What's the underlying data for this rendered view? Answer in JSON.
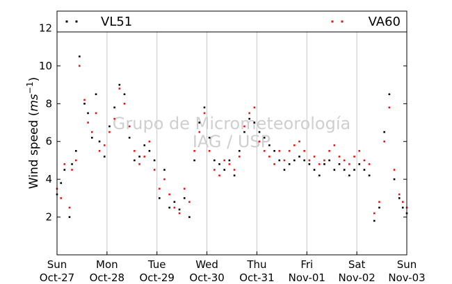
{
  "chart_data": {
    "type": "scatter",
    "title": "",
    "xlabel": "",
    "ylabel": "Wind speed (m s⁻¹)",
    "ylabel_parts": {
      "main": "Wind speed (",
      "unit_base": "ms",
      "unit_exp": "−1",
      "close": ")"
    },
    "ylim": [
      0,
      12.9
    ],
    "xlim": [
      0,
      7
    ],
    "y_ticks": [
      2,
      4,
      6,
      8,
      10,
      12
    ],
    "x_ticks": [
      {
        "x": 0,
        "day": "Sun",
        "date": "Oct-27"
      },
      {
        "x": 1,
        "day": "Mon",
        "date": "Oct-28"
      },
      {
        "x": 2,
        "day": "Tue",
        "date": "Oct-29"
      },
      {
        "x": 3,
        "day": "Wed",
        "date": "Oct-30"
      },
      {
        "x": 4,
        "day": "Thu",
        "date": "Oct-31"
      },
      {
        "x": 5,
        "day": "Fri",
        "date": "Nov-01"
      },
      {
        "x": 6,
        "day": "Sat",
        "date": "Nov-02"
      },
      {
        "x": 7,
        "day": "Sun",
        "date": "Nov-03"
      }
    ],
    "grid": "vertical",
    "legend": {
      "placement": "top"
    },
    "watermark": [
      "Grupo de Micrometeorología",
      "IAG / USP"
    ],
    "series": [
      {
        "name": "VL51",
        "color": "#000000",
        "x": [
          0.0,
          0.08,
          0.15,
          0.25,
          0.3,
          0.38,
          0.45,
          0.55,
          0.62,
          0.7,
          0.78,
          0.85,
          0.95,
          1.05,
          1.15,
          1.25,
          1.35,
          1.45,
          1.55,
          1.65,
          1.75,
          1.85,
          1.95,
          2.05,
          2.15,
          2.25,
          2.35,
          2.45,
          2.55,
          2.65,
          2.75,
          2.85,
          2.95,
          3.05,
          3.15,
          3.25,
          3.35,
          3.45,
          3.55,
          3.65,
          3.75,
          3.85,
          3.95,
          4.05,
          4.15,
          4.25,
          4.35,
          4.45,
          4.55,
          4.65,
          4.75,
          4.85,
          4.95,
          5.05,
          5.15,
          5.25,
          5.35,
          5.45,
          5.55,
          5.65,
          5.75,
          5.85,
          5.95,
          6.05,
          6.15,
          6.25,
          6.35,
          6.45,
          6.55,
          6.65,
          6.75,
          6.85,
          6.92,
          7.0
        ],
        "y": [
          3.2,
          3.8,
          4.5,
          2.0,
          4.8,
          5.5,
          10.5,
          8.0,
          7.5,
          6.2,
          8.5,
          6.0,
          5.2,
          6.8,
          7.8,
          9.0,
          8.5,
          6.2,
          5.0,
          5.2,
          5.8,
          5.5,
          5.0,
          3.0,
          4.5,
          2.5,
          2.8,
          2.4,
          3.0,
          2.0,
          5.0,
          7.0,
          7.8,
          6.2,
          5.0,
          4.8,
          4.5,
          5.0,
          4.2,
          5.5,
          6.5,
          7.2,
          7.0,
          6.5,
          6.2,
          5.8,
          5.5,
          5.0,
          4.5,
          4.8,
          5.0,
          5.2,
          5.0,
          4.8,
          4.5,
          4.2,
          4.8,
          5.0,
          4.5,
          4.8,
          4.5,
          4.2,
          4.5,
          4.8,
          4.5,
          4.2,
          1.8,
          2.5,
          6.5,
          8.5,
          4.0,
          3.0,
          2.5,
          2.2
        ]
      },
      {
        "name": "VA60",
        "color": "#ee1111",
        "x": [
          0.0,
          0.08,
          0.15,
          0.25,
          0.3,
          0.38,
          0.45,
          0.55,
          0.62,
          0.7,
          0.78,
          0.85,
          0.95,
          1.05,
          1.15,
          1.25,
          1.35,
          1.45,
          1.55,
          1.65,
          1.75,
          1.85,
          1.95,
          2.05,
          2.15,
          2.25,
          2.35,
          2.45,
          2.55,
          2.65,
          2.75,
          2.85,
          2.95,
          3.05,
          3.15,
          3.25,
          3.35,
          3.45,
          3.55,
          3.65,
          3.75,
          3.85,
          3.95,
          4.05,
          4.15,
          4.25,
          4.35,
          4.45,
          4.55,
          4.65,
          4.75,
          4.85,
          4.95,
          5.05,
          5.15,
          5.25,
          5.35,
          5.45,
          5.55,
          5.65,
          5.75,
          5.85,
          5.95,
          6.05,
          6.15,
          6.25,
          6.35,
          6.45,
          6.55,
          6.65,
          6.75,
          6.85,
          6.92,
          7.0
        ],
        "y": [
          3.5,
          3.0,
          4.8,
          2.5,
          4.5,
          5.0,
          10.0,
          8.2,
          7.0,
          6.5,
          7.5,
          5.5,
          5.8,
          6.5,
          7.2,
          8.8,
          8.0,
          6.8,
          5.5,
          4.8,
          5.2,
          6.0,
          4.5,
          3.5,
          4.0,
          3.2,
          2.5,
          2.2,
          3.5,
          2.8,
          5.5,
          6.5,
          7.5,
          5.5,
          4.5,
          4.2,
          5.0,
          4.8,
          4.5,
          5.2,
          6.8,
          7.5,
          7.8,
          6.0,
          5.5,
          5.2,
          4.8,
          5.5,
          5.0,
          5.5,
          5.8,
          6.0,
          5.5,
          5.0,
          5.2,
          4.8,
          5.0,
          5.5,
          5.8,
          5.2,
          5.0,
          4.8,
          5.2,
          5.5,
          5.0,
          4.8,
          2.2,
          2.8,
          6.0,
          7.8,
          4.5,
          3.2,
          2.8,
          2.5
        ]
      }
    ]
  }
}
